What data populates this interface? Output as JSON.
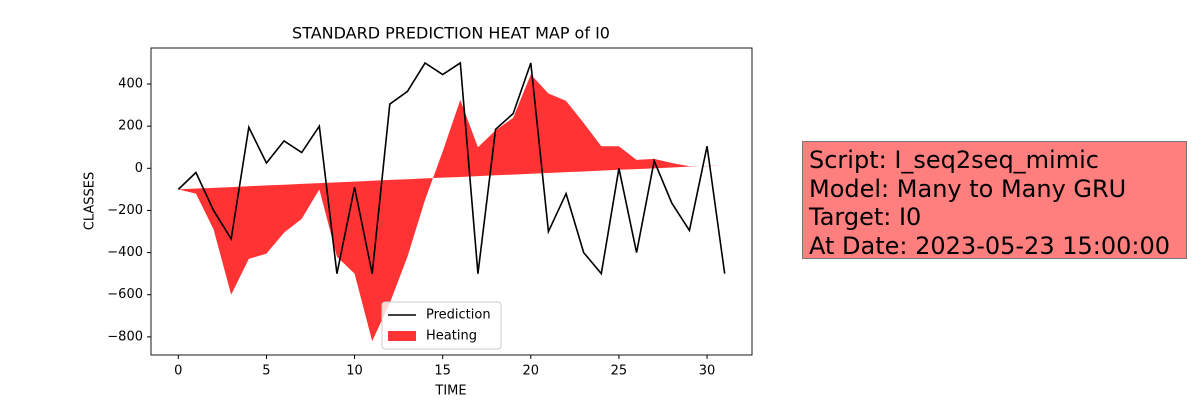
{
  "chart_data": {
    "type": "line",
    "title": "STANDARD PREDICTION HEAT MAP of I0",
    "x_label": "TIME",
    "y_label": "CLASSES",
    "x": [
      0,
      1,
      2,
      3,
      4,
      5,
      6,
      7,
      8,
      9,
      10,
      11,
      12,
      13,
      14,
      15,
      16,
      17,
      18,
      19,
      20,
      21,
      22,
      23,
      24,
      25,
      26,
      27,
      28,
      29,
      30,
      31
    ],
    "series": [
      {
        "name": "Prediction",
        "color": "#000000",
        "kind": "line",
        "values": [
          -100,
          -20,
          -200,
          -335,
          195,
          25,
          130,
          75,
          200,
          -500,
          -90,
          -500,
          305,
          365,
          500,
          445,
          500,
          -500,
          185,
          260,
          500,
          -300,
          -120,
          -400,
          -500,
          0,
          -400,
          35,
          -165,
          -295,
          105,
          -500
        ]
      },
      {
        "name": "Heating",
        "color": "#ff0000",
        "kind": "fill",
        "values": [
          -100,
          -120,
          -290,
          -600,
          -430,
          -405,
          -305,
          -240,
          -100,
          -420,
          -500,
          -820,
          -640,
          -420,
          -150,
          80,
          325,
          100,
          180,
          240,
          445,
          355,
          320,
          215,
          105,
          105,
          40,
          45,
          25,
          10,
          10,
          15
        ],
        "base": [
          -100,
          -96,
          -93,
          -89,
          -85,
          -81,
          -78,
          -74,
          -70,
          -67,
          -63,
          -59,
          -55,
          -52,
          -48,
          -44,
          -41,
          -37,
          -33,
          -30,
          -26,
          -22,
          -18,
          -15,
          -11,
          -7,
          -4,
          0,
          4,
          8,
          11,
          15
        ]
      }
    ],
    "xlim": [
      -1.55,
      32.55
    ],
    "xticks": [
      0,
      5,
      10,
      15,
      20,
      25,
      30
    ],
    "ylim": [
      -886,
      571
    ],
    "yticks": [
      {
        "value": -800,
        "label": "−800"
      },
      {
        "value": -600,
        "label": "−600"
      },
      {
        "value": -400,
        "label": "−400"
      },
      {
        "value": -200,
        "label": "−200"
      },
      0,
      200,
      400
    ],
    "legend": "lower center",
    "annotation": [
      "Script: I_seq2seq_mimic",
      "Model: Many to Many GRU",
      "Target: I0",
      "At Date: 2023-05-23 15:00:00"
    ]
  }
}
